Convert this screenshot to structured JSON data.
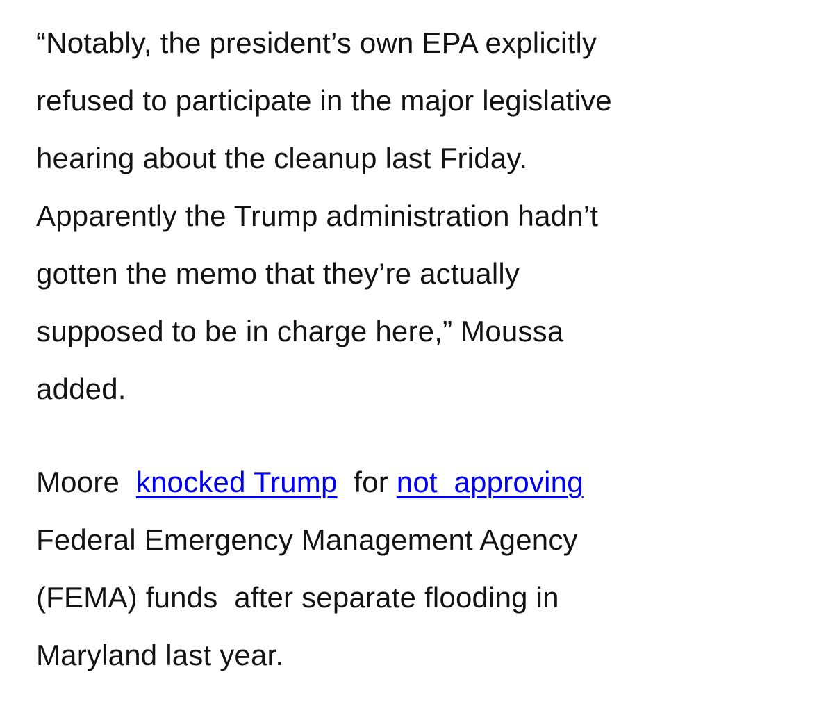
{
  "page": {
    "background_color": "#ffffff",
    "text_color": "#131313",
    "link_color": "#0000ee"
  },
  "article": {
    "paragraphs": [
      {
        "lines": [
          [
            {
              "type": "text",
              "text": "“Notably, the president’s own EPA explicitly"
            }
          ],
          [
            {
              "type": "text",
              "text": "refused to participate in the major legislative"
            }
          ],
          [
            {
              "type": "text",
              "text": "hearing about the cleanup last Friday."
            }
          ],
          [
            {
              "type": "text",
              "text": "Apparently the Trump administration hadn’t"
            }
          ],
          [
            {
              "type": "text",
              "text": "gotten the memo that they’re actually"
            }
          ],
          [
            {
              "type": "text",
              "text": "supposed to be in charge here,” Moussa"
            }
          ],
          [
            {
              "type": "text",
              "text": "added."
            }
          ]
        ]
      },
      {
        "lines": [
          [
            {
              "type": "text",
              "text": "Moore  "
            },
            {
              "type": "link",
              "text": "knocked Trump",
              "name": "knocked-trump-link"
            },
            {
              "type": "text",
              "text": "  for "
            },
            {
              "type": "link",
              "text": "not  approving",
              "name": "not-approving-link"
            }
          ],
          [
            {
              "type": "text",
              "text": "Federal Emergency Management Agency"
            }
          ],
          [
            {
              "type": "text",
              "text": "(FEMA) funds  after separate flooding in"
            }
          ],
          [
            {
              "type": "text",
              "text": "Maryland last year."
            }
          ]
        ]
      }
    ]
  }
}
